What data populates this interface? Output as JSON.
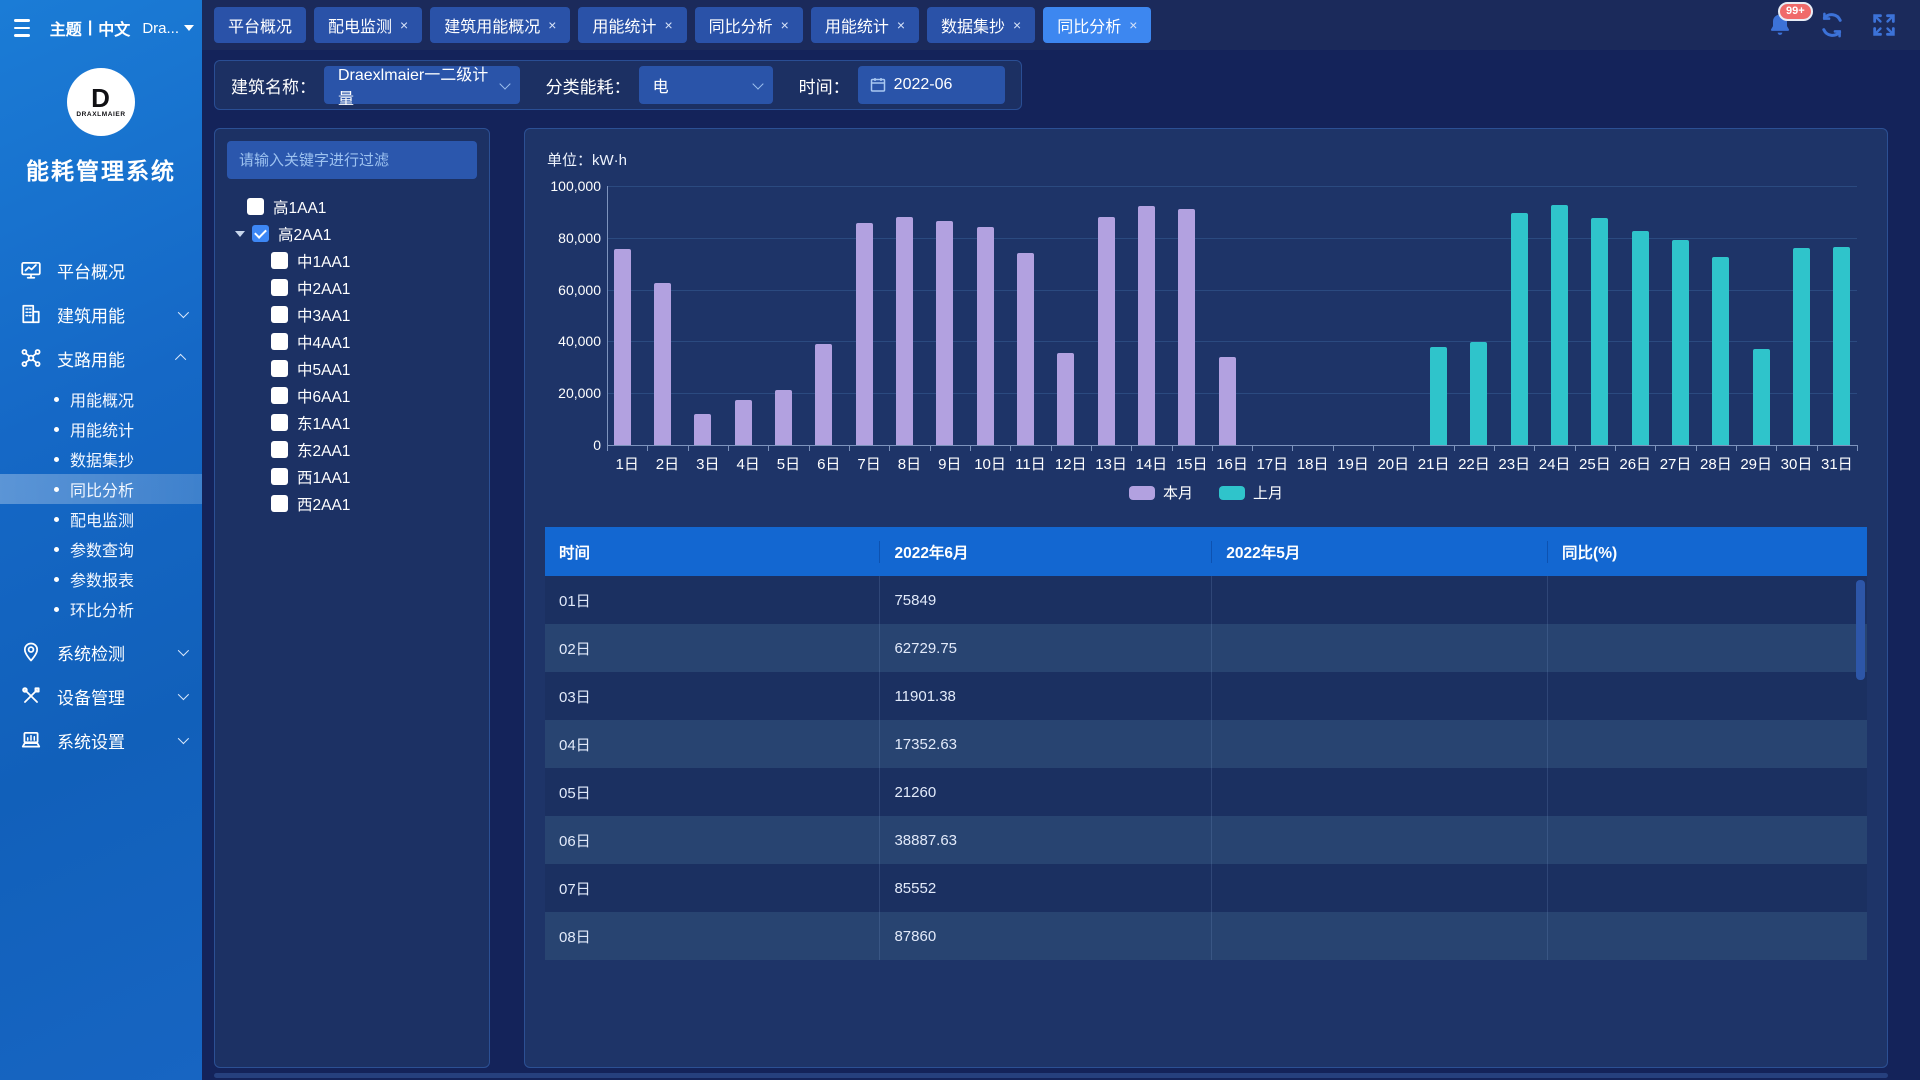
{
  "app": {
    "title": "能耗管理系统",
    "logo_brand": "DRAXLMAIER",
    "logo_letter": "D"
  },
  "topbar": {
    "theme": "主题",
    "divider": "|",
    "language": "中文",
    "project": "Dra...",
    "notification_badge": "99+"
  },
  "glyphs": {
    "close": "×"
  },
  "tabs": [
    {
      "label": "平台概况",
      "closable": false,
      "active": false
    },
    {
      "label": "配电监测",
      "closable": true,
      "active": false
    },
    {
      "label": "建筑用能概况",
      "closable": true,
      "active": false
    },
    {
      "label": "用能统计",
      "closable": true,
      "active": false
    },
    {
      "label": "同比分析",
      "closable": true,
      "active": false
    },
    {
      "label": "用能统计",
      "closable": true,
      "active": false
    },
    {
      "label": "数据集抄",
      "closable": true,
      "active": false
    },
    {
      "label": "同比分析",
      "closable": true,
      "active": true
    }
  ],
  "sidebar_menu": [
    {
      "label": "平台概况",
      "icon": "monitor-icon",
      "expandable": false,
      "expanded": false,
      "children": []
    },
    {
      "label": "建筑用能",
      "icon": "building-icon",
      "expandable": true,
      "expanded": false,
      "children": []
    },
    {
      "label": "支路用能",
      "icon": "branch-icon",
      "expandable": true,
      "expanded": true,
      "children": [
        {
          "label": "用能概况",
          "active": false
        },
        {
          "label": "用能统计",
          "active": false
        },
        {
          "label": "数据集抄",
          "active": false
        },
        {
          "label": "同比分析",
          "active": true
        },
        {
          "label": "配电监测",
          "active": false
        },
        {
          "label": "参数查询",
          "active": false
        },
        {
          "label": "参数报表",
          "active": false
        },
        {
          "label": "环比分析",
          "active": false
        }
      ]
    },
    {
      "label": "系统检测",
      "icon": "location-icon",
      "expandable": true,
      "expanded": false,
      "children": []
    },
    {
      "label": "设备管理",
      "icon": "tools-icon",
      "expandable": true,
      "expanded": false,
      "children": []
    },
    {
      "label": "系统设置",
      "icon": "settings-icon",
      "expandable": true,
      "expanded": false,
      "children": []
    }
  ],
  "filters": {
    "building_label": "建筑名称：",
    "building_value": "Draexlmaier一二级计量",
    "category_label": "分类能耗：",
    "category_value": "电",
    "time_label": "时间：",
    "time_value": "2022-06"
  },
  "tree": {
    "search_placeholder": "请输入关键字进行过滤",
    "nodes": [
      {
        "label": "高1AA1",
        "level": 0,
        "checked": false,
        "caret": false
      },
      {
        "label": "高2AA1",
        "level": 0,
        "checked": true,
        "caret": true
      },
      {
        "label": "中1AA1",
        "level": 1,
        "checked": false,
        "caret": false
      },
      {
        "label": "中2AA1",
        "level": 1,
        "checked": false,
        "caret": false
      },
      {
        "label": "中3AA1",
        "level": 1,
        "checked": false,
        "caret": false
      },
      {
        "label": "中4AA1",
        "level": 1,
        "checked": false,
        "caret": false
      },
      {
        "label": "中5AA1",
        "level": 1,
        "checked": false,
        "caret": false
      },
      {
        "label": "中6AA1",
        "level": 1,
        "checked": false,
        "caret": false
      },
      {
        "label": "东1AA1",
        "level": 1,
        "checked": false,
        "caret": false
      },
      {
        "label": "东2AA1",
        "level": 1,
        "checked": false,
        "caret": false
      },
      {
        "label": "西1AA1",
        "level": 1,
        "checked": false,
        "caret": false
      },
      {
        "label": "西2AA1",
        "level": 1,
        "checked": false,
        "caret": false
      }
    ]
  },
  "chart": {
    "unit_label": "单位：kW·h"
  },
  "chart_data": {
    "type": "bar",
    "title": "",
    "unit": "kW·h",
    "categories": [
      "1日",
      "2日",
      "3日",
      "4日",
      "5日",
      "6日",
      "7日",
      "8日",
      "9日",
      "10日",
      "11日",
      "12日",
      "13日",
      "14日",
      "15日",
      "16日",
      "17日",
      "18日",
      "19日",
      "20日",
      "21日",
      "22日",
      "23日",
      "24日",
      "25日",
      "26日",
      "27日",
      "28日",
      "29日",
      "30日",
      "31日"
    ],
    "series": [
      {
        "name": "本月",
        "color": "#b2a1e0",
        "values": [
          75849,
          62729.75,
          11901.38,
          17352.63,
          21260,
          38887.63,
          85552,
          87860,
          86400,
          84200,
          74300,
          35700,
          88100,
          92300,
          91100,
          34100,
          null,
          null,
          null,
          null,
          null,
          null,
          null,
          null,
          null,
          null,
          null,
          null,
          null,
          null,
          null
        ]
      },
      {
        "name": "上月",
        "color": "#2fc4cb",
        "values": [
          null,
          null,
          null,
          null,
          null,
          null,
          null,
          null,
          null,
          null,
          null,
          null,
          null,
          null,
          null,
          null,
          null,
          null,
          null,
          null,
          37800,
          39700,
          89500,
          92500,
          87500,
          82500,
          79000,
          72500,
          37000,
          76000,
          76500
        ]
      }
    ],
    "ylim": [
      0,
      100000
    ],
    "ytick_interval": 20000,
    "grid": true,
    "legend_position": "bottom"
  },
  "table": {
    "headers": [
      "时间",
      "2022年6月",
      "2022年5月",
      "同比(%)"
    ],
    "col_widths": [
      "25.3%",
      "25.1%",
      "25.4%",
      "24.2%"
    ],
    "rows": [
      [
        "01日",
        "75849",
        "",
        ""
      ],
      [
        "02日",
        "62729.75",
        "",
        ""
      ],
      [
        "03日",
        "11901.38",
        "",
        ""
      ],
      [
        "04日",
        "17352.63",
        "",
        ""
      ],
      [
        "05日",
        "21260",
        "",
        ""
      ],
      [
        "06日",
        "38887.63",
        "",
        ""
      ],
      [
        "07日",
        "85552",
        "",
        ""
      ],
      [
        "08日",
        "87860",
        "",
        ""
      ]
    ]
  }
}
